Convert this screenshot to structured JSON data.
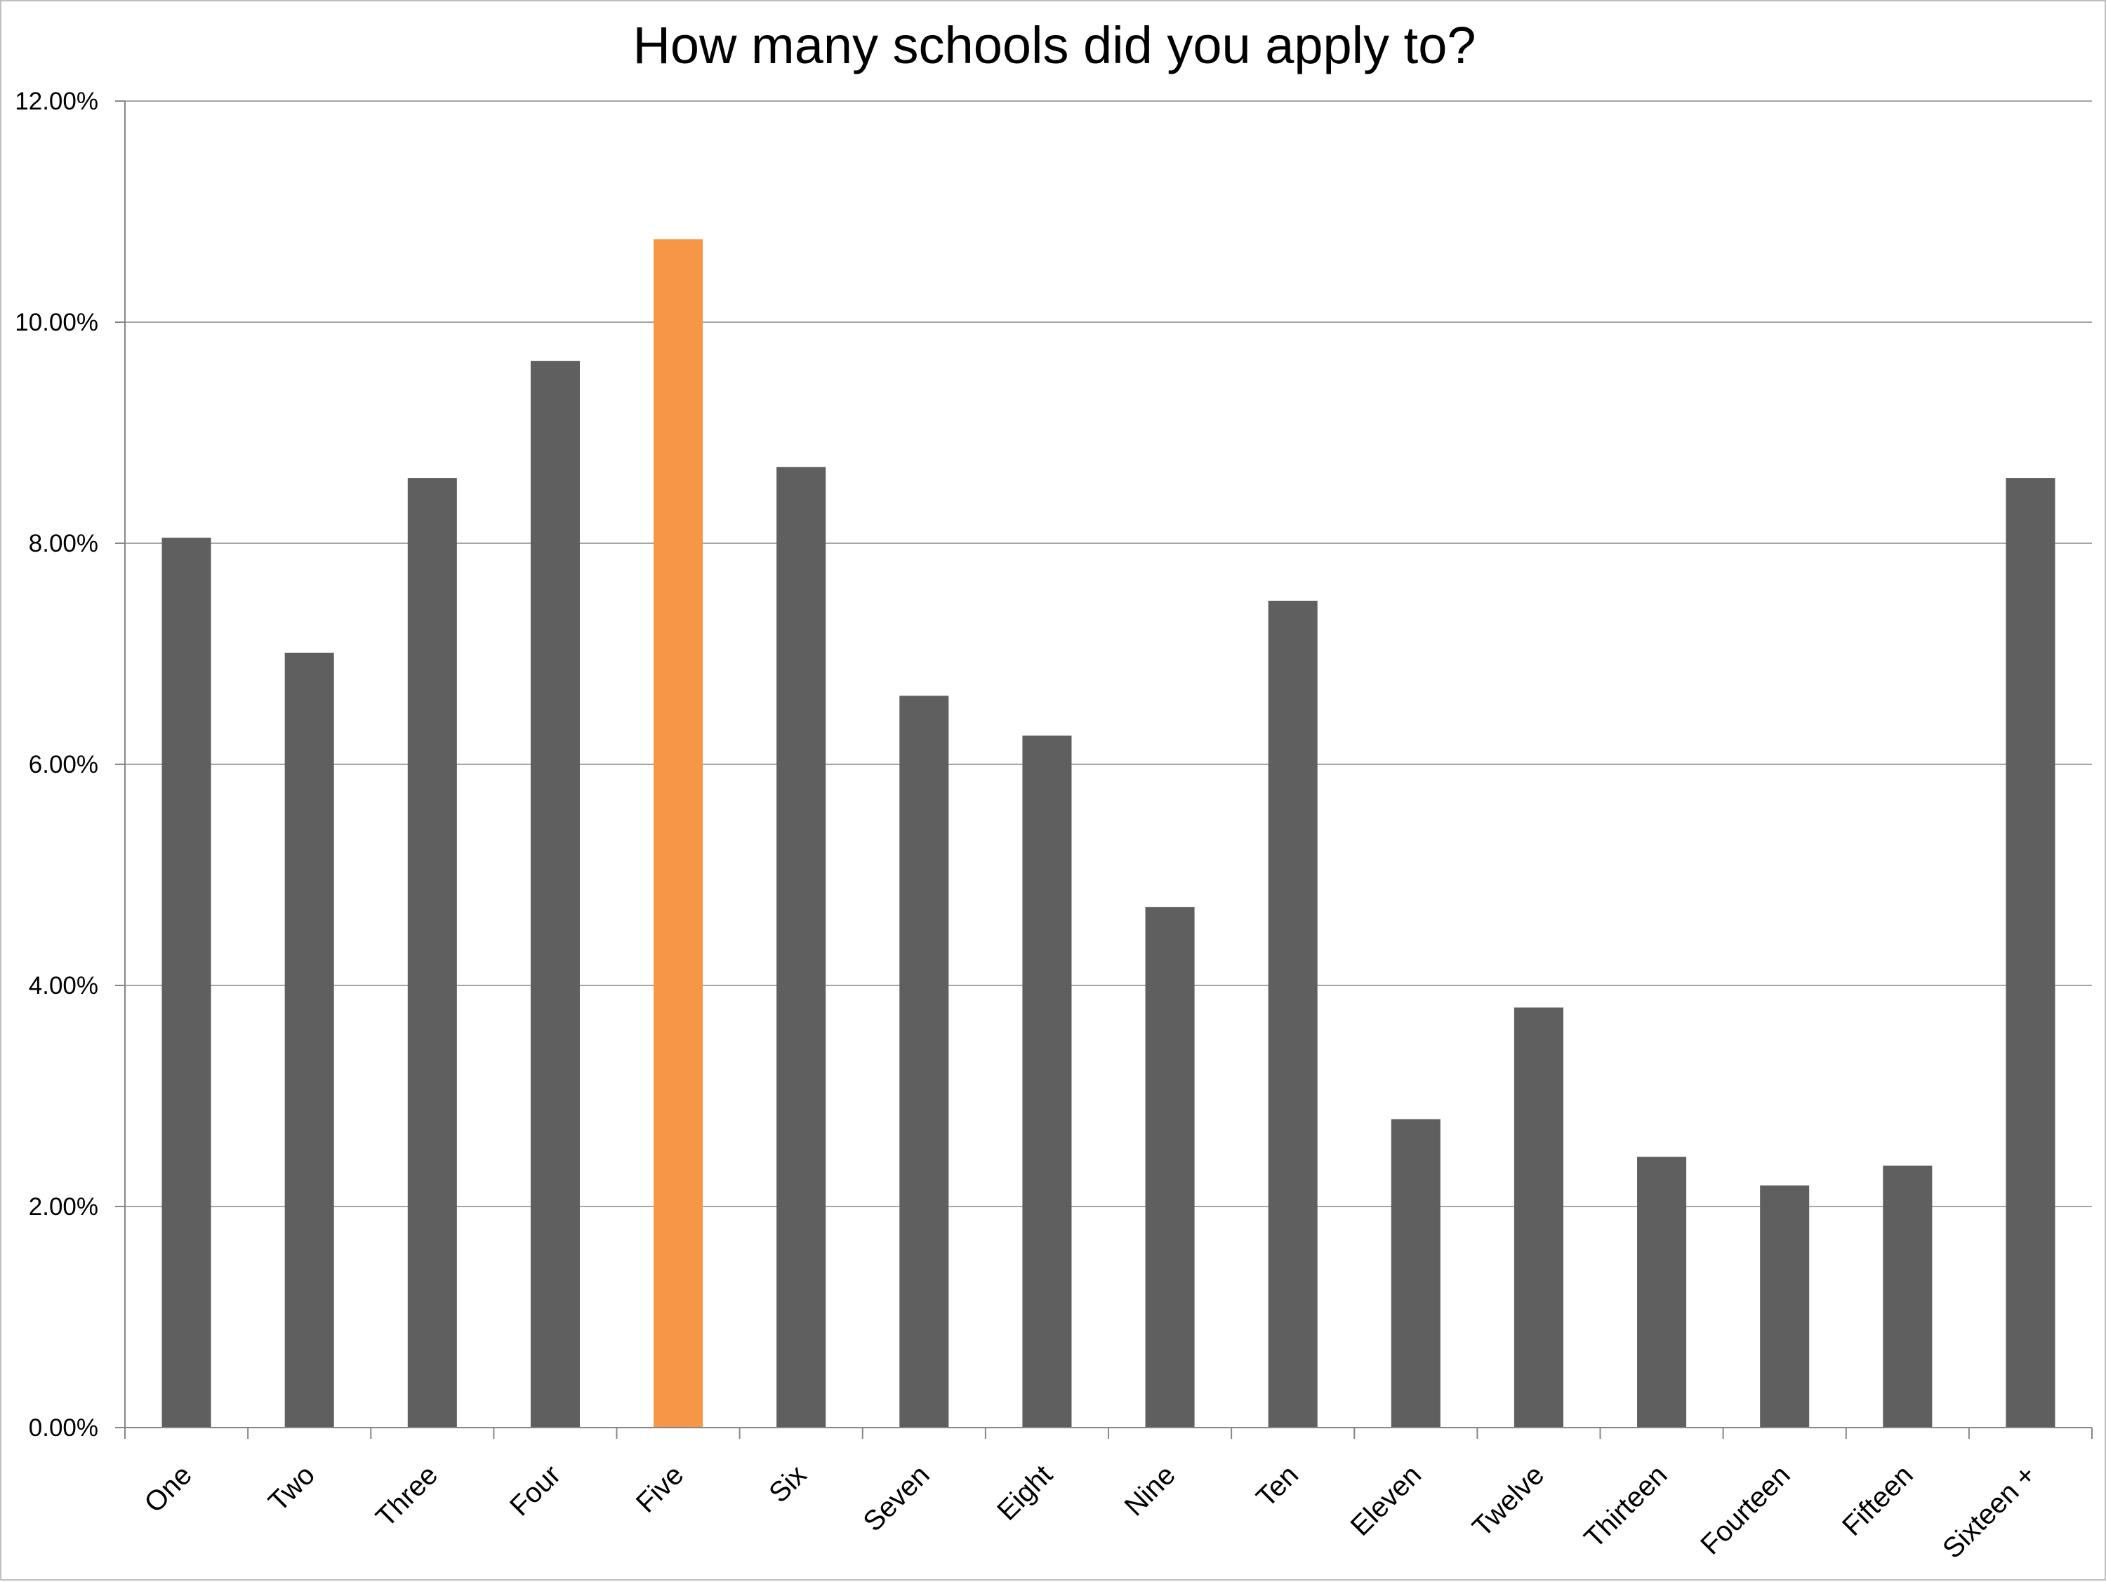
{
  "chart_data": {
    "type": "bar",
    "title": "How many schools did you apply to?",
    "xlabel": "",
    "ylabel": "",
    "categories": [
      "One",
      "Two",
      "Three",
      "Four",
      "Five",
      "Six",
      "Seven",
      "Eight",
      "Nine",
      "Ten",
      "Eleven",
      "Twelve",
      "Thirteen",
      "Fourteen",
      "Fifteen",
      "Sixteen +"
    ],
    "values": [
      8.05,
      7.01,
      8.59,
      9.65,
      10.75,
      8.69,
      6.62,
      6.26,
      4.71,
      7.48,
      2.79,
      3.8,
      2.45,
      2.19,
      2.37,
      8.59
    ],
    "ylim": [
      0,
      12
    ],
    "yticks": [
      0,
      2,
      4,
      6,
      8,
      10,
      12
    ],
    "ytick_labels": [
      "0.00%",
      "2.00%",
      "4.00%",
      "6.00%",
      "8.00%",
      "10.00%",
      "12.00%"
    ],
    "grid": true,
    "legend": "none",
    "colors": {
      "bar": "#5f5f5f",
      "highlight": "#f79646",
      "grid": "#a6a6a6",
      "axis": "#868686"
    },
    "highlight_category": "Five"
  }
}
